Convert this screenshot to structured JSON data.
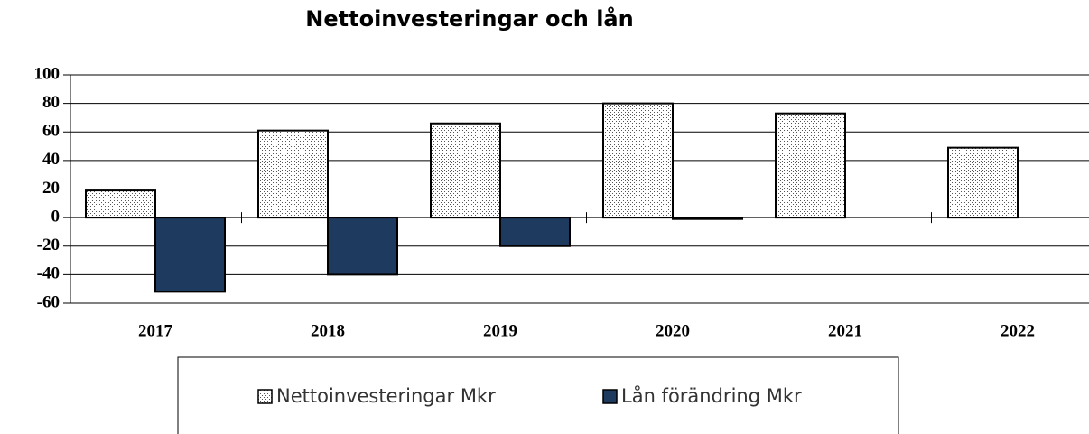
{
  "chart_data": {
    "type": "bar",
    "title": "Nettoinvesteringar och lån",
    "categories": [
      "2017",
      "2018",
      "2019",
      "2020",
      "2021",
      "2022"
    ],
    "series": [
      {
        "name": "Nettoinvesteringar Mkr",
        "color": "#ffffff",
        "values": [
          19,
          61,
          66,
          80,
          73,
          49
        ]
      },
      {
        "name": "Lån förändring Mkr",
        "color": "#1f3a5f",
        "values": [
          -52,
          -40,
          -20,
          -1,
          null,
          null
        ]
      }
    ],
    "ylim": [
      -60,
      100
    ],
    "yticks": [
      -60,
      -40,
      -20,
      0,
      20,
      40,
      60,
      80,
      100
    ],
    "grid": true
  }
}
